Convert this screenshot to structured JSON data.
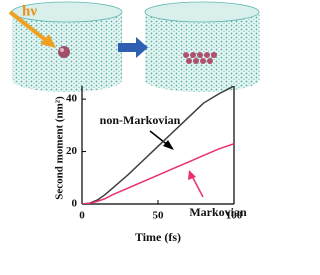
{
  "illustration": {
    "photon_label": "hν"
  },
  "chart_data": {
    "type": "line",
    "xlabel": "Time (fs)",
    "ylabel": "Second moment (nm²)",
    "x": [
      0,
      5,
      10,
      15,
      20,
      30,
      40,
      50,
      60,
      70,
      80,
      90,
      100
    ],
    "series": [
      {
        "name": "non-Markovian",
        "color": "#3a3f3a",
        "values": [
          0,
          0.3,
          1.5,
          3.5,
          6,
          11,
          16.5,
          22,
          27.5,
          33,
          38.5,
          42,
          45
        ]
      },
      {
        "name": "Markovian",
        "color": "#e8336a",
        "values": [
          0,
          0.3,
          1,
          2,
          3.5,
          6,
          8.5,
          11,
          13.5,
          16,
          18.5,
          21,
          23
        ]
      }
    ],
    "xlim": [
      0,
      100
    ],
    "xticks": [
      0,
      50,
      100
    ],
    "ylim": [
      0,
      45
    ],
    "yticks": [
      0,
      20,
      40
    ]
  }
}
